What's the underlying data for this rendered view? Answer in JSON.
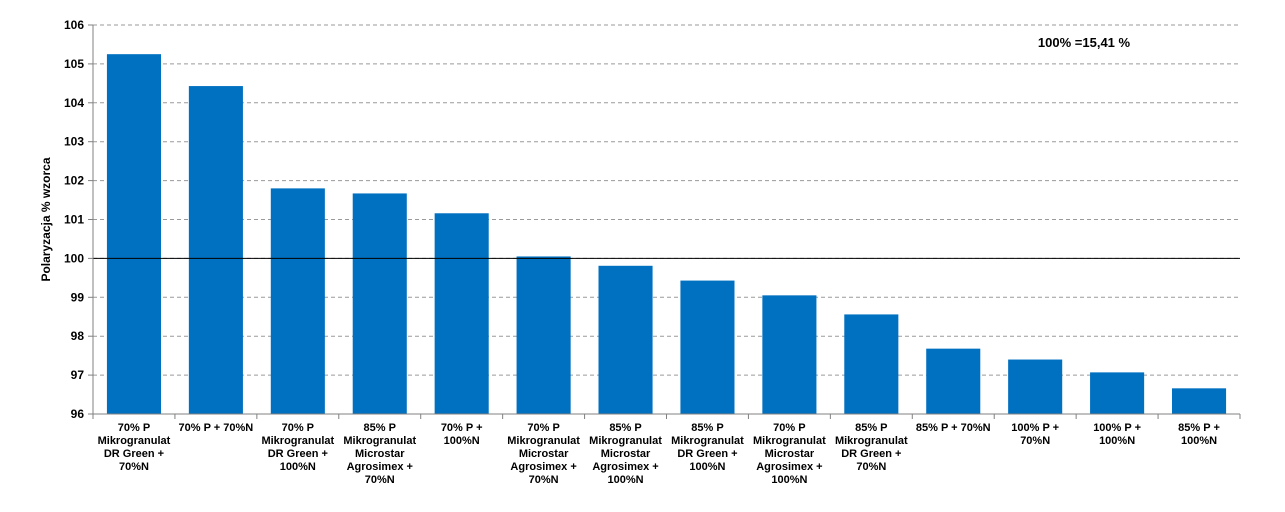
{
  "chart_data": {
    "type": "bar",
    "categories": [
      [
        "70% P",
        "Mikrogranulat",
        "DR Green +",
        "70%N"
      ],
      [
        "70% P + 70%N"
      ],
      [
        "70% P",
        "Mikrogranulat",
        "DR Green +",
        "100%N"
      ],
      [
        "85% P",
        "Mikrogranulat",
        "Microstar",
        "Agrosimex +",
        "70%N"
      ],
      [
        "70% P +",
        "100%N"
      ],
      [
        "70% P",
        "Mikrogranulat",
        "Microstar",
        "Agrosimex +",
        "70%N"
      ],
      [
        "85% P",
        "Mikrogranulat",
        "Microstar",
        "Agrosimex +",
        "100%N"
      ],
      [
        "85% P",
        "Mikrogranulat",
        "DR Green +",
        "100%N"
      ],
      [
        "70% P",
        "Mikrogranulat",
        "Microstar",
        "Agrosimex +",
        "100%N"
      ],
      [
        "85% P",
        "Mikrogranulat",
        "DR Green +",
        "70%N"
      ],
      [
        "85% P + 70%N"
      ],
      [
        "100% P +",
        "70%N"
      ],
      [
        "100% P +",
        "100%N"
      ],
      [
        "85% P +",
        "100%N"
      ]
    ],
    "values": [
      105.25,
      104.43,
      101.8,
      101.67,
      101.16,
      100.05,
      99.81,
      99.43,
      99.05,
      98.56,
      97.68,
      97.4,
      97.07,
      96.66
    ],
    "ylabel": "Polaryzacja % wzorca",
    "ylim": [
      96,
      106
    ],
    "yticks": [
      96,
      97,
      98,
      99,
      100,
      101,
      102,
      103,
      104,
      105,
      106
    ],
    "reference_line": 100,
    "annotation": "100% =15,41 %",
    "grid": true,
    "colors": {
      "bar": "#0070C0",
      "grid": "#9A9A9A",
      "axis": "#808080",
      "reference": "#000000"
    }
  }
}
